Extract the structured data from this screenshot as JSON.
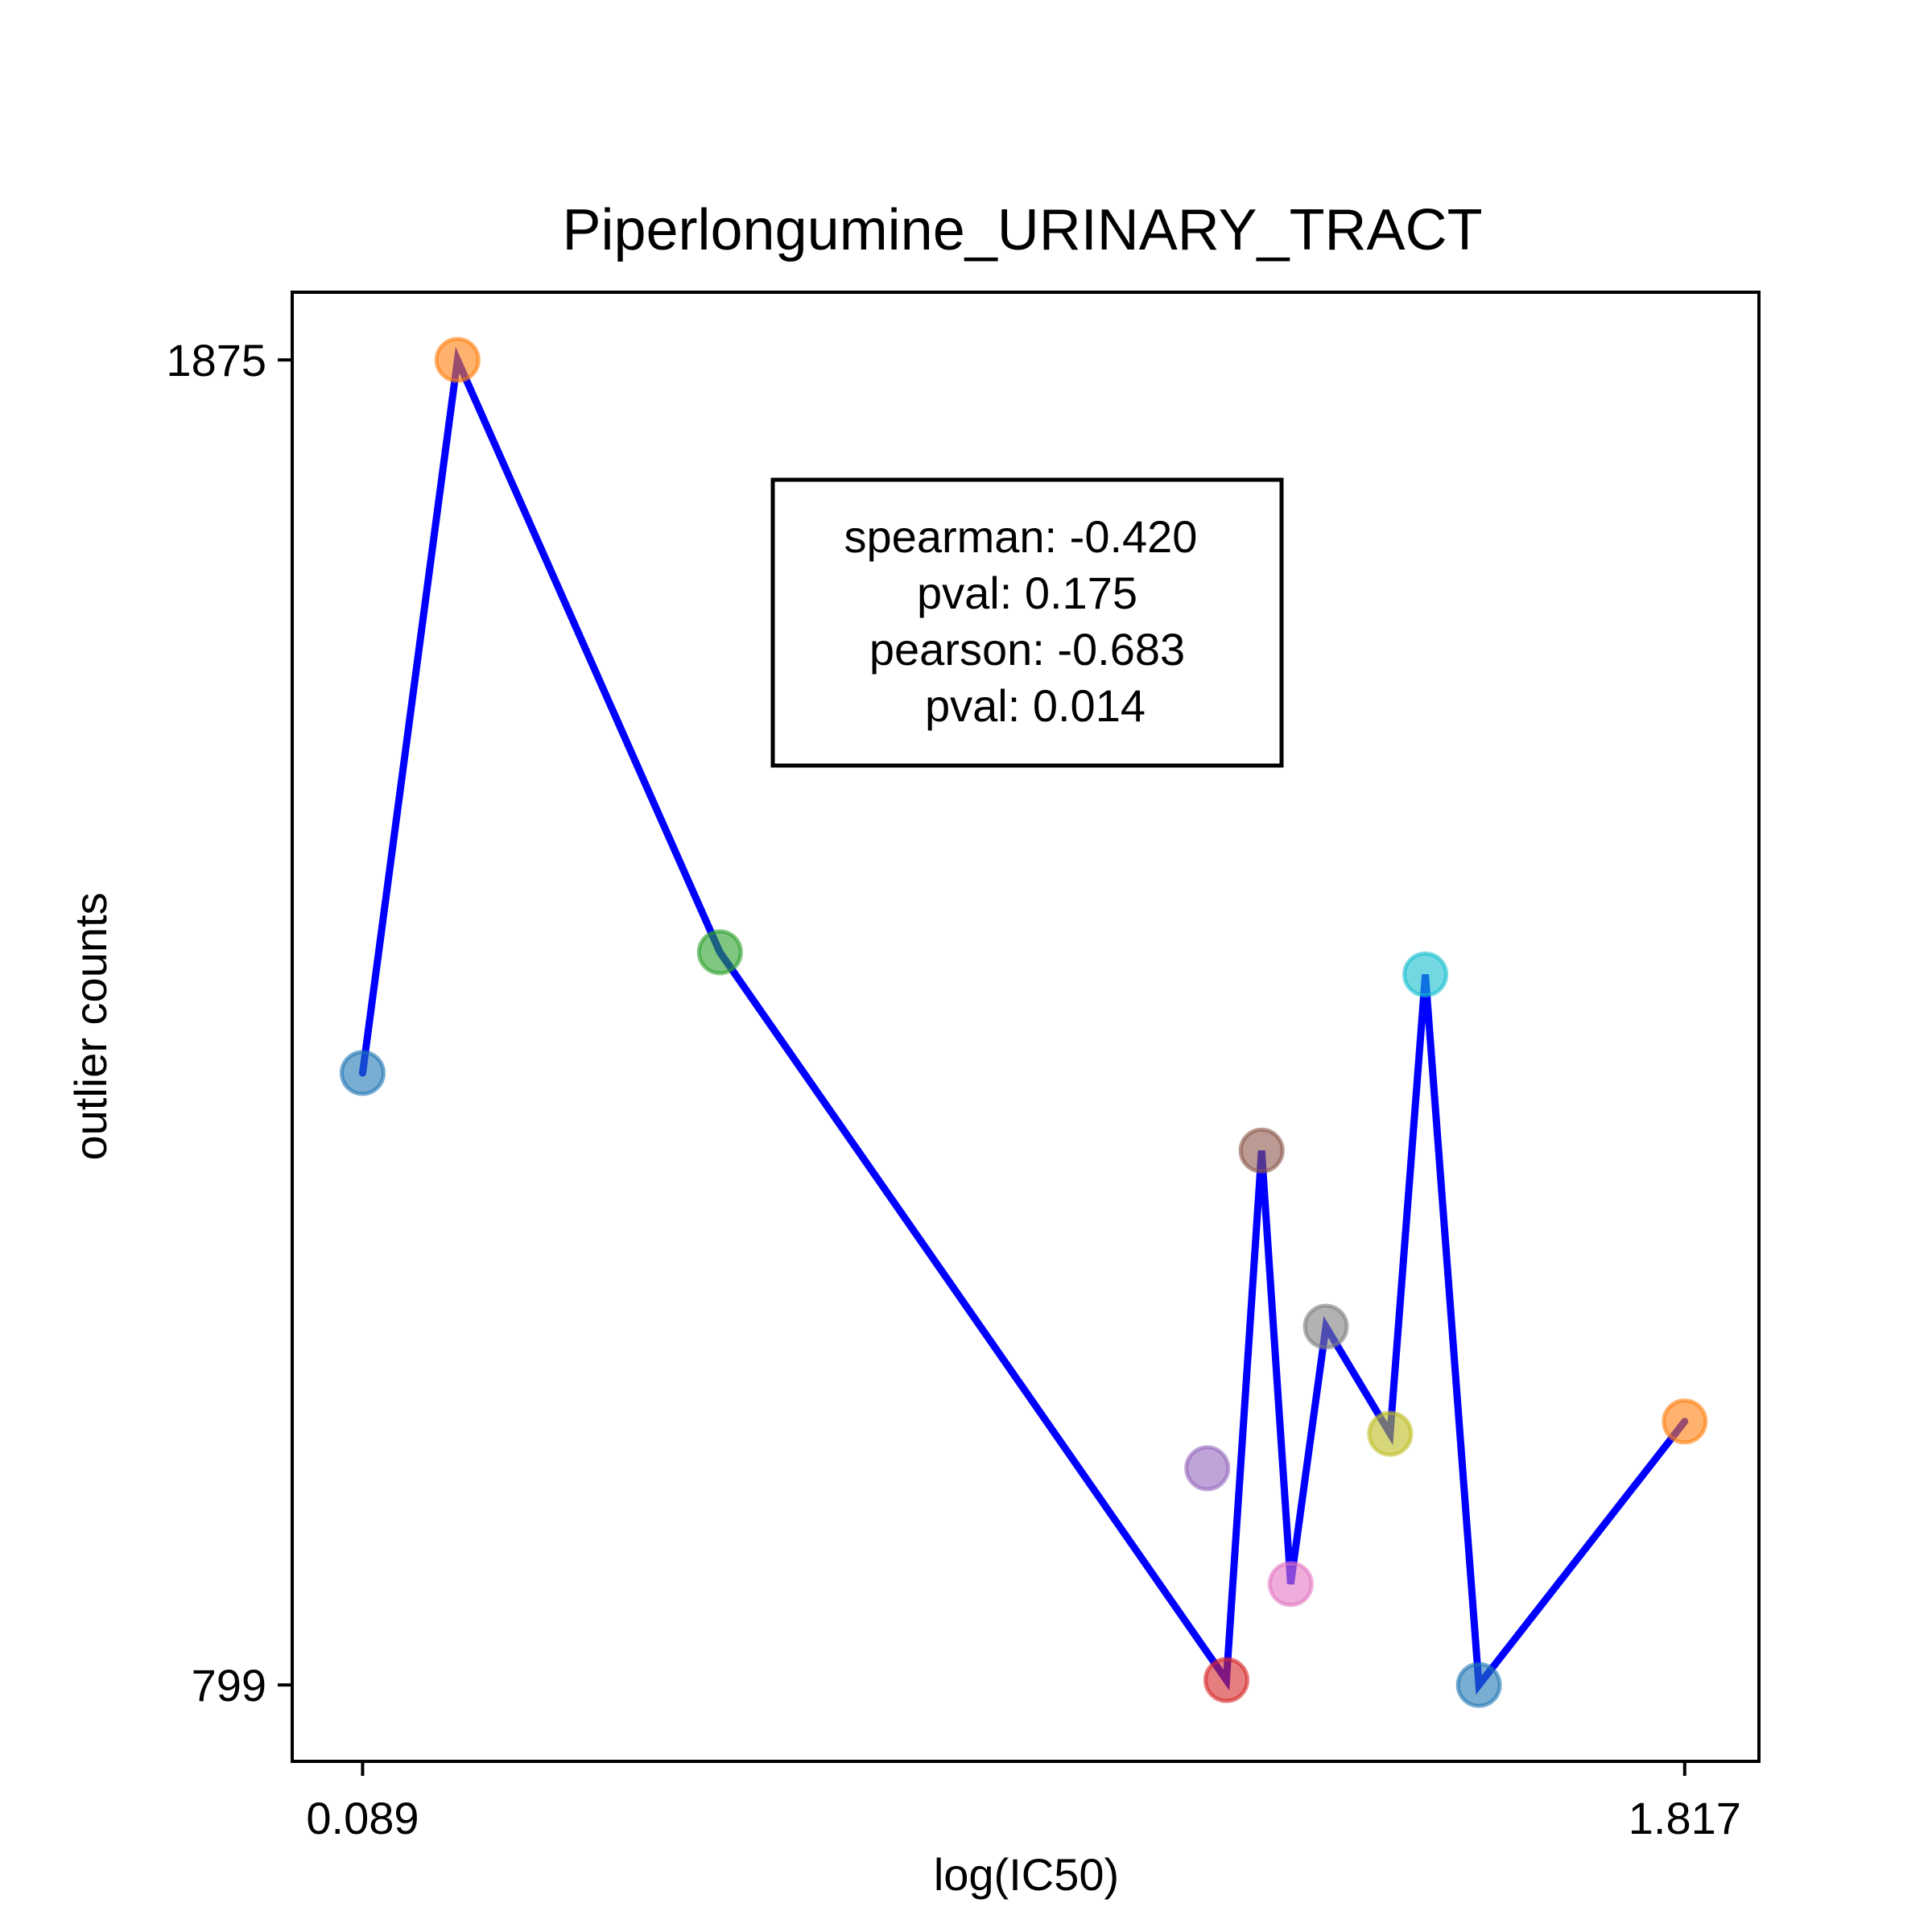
{
  "chart_data": {
    "type": "line",
    "title": "Piperlongumine_URINARY_TRACT",
    "xlabel": "log(IC50)",
    "ylabel": "outlier counts",
    "xticks": [
      0.089,
      1.817
    ],
    "xtick_labels": [
      "0.089",
      "1.817"
    ],
    "yticks": [
      1875,
      799
    ],
    "ytick_labels": [
      "1875",
      "799"
    ],
    "xlim": [
      -0.003,
      1.914
    ],
    "ylim": [
      737,
      1930
    ],
    "grid": false,
    "line_color": "#0000ff",
    "points": [
      {
        "x": 0.089,
        "y": 1296,
        "color": "#1f77b4"
      },
      {
        "x": 0.213,
        "y": 1875,
        "color": "#ff7f0e"
      },
      {
        "x": 0.556,
        "y": 1394,
        "color": "#2ca02c"
      },
      {
        "x": 1.218,
        "y": 803,
        "color": "#d62728"
      },
      {
        "x": 1.193,
        "y": 975,
        "color": "#9467bd"
      },
      {
        "x": 1.264,
        "y": 1233,
        "color": "#8c564b"
      },
      {
        "x": 1.302,
        "y": 881,
        "color": "#e377c2"
      },
      {
        "x": 1.348,
        "y": 1090,
        "color": "#7f7f7f"
      },
      {
        "x": 1.432,
        "y": 1003,
        "color": "#bcbd22"
      },
      {
        "x": 1.478,
        "y": 1376,
        "color": "#17becf"
      },
      {
        "x": 1.548,
        "y": 799,
        "color": "#1f77b4"
      },
      {
        "x": 1.817,
        "y": 1013,
        "color": "#ff7f0e"
      }
    ],
    "line_order": [
      0,
      1,
      2,
      3,
      5,
      6,
      7,
      8,
      9,
      10,
      11
    ],
    "stats_box": {
      "lines": [
        "spearman: -0.420",
        "pval: 0.175",
        "pearson: -0.683",
        "pval: 0.014"
      ],
      "placement": "upper-center"
    }
  }
}
